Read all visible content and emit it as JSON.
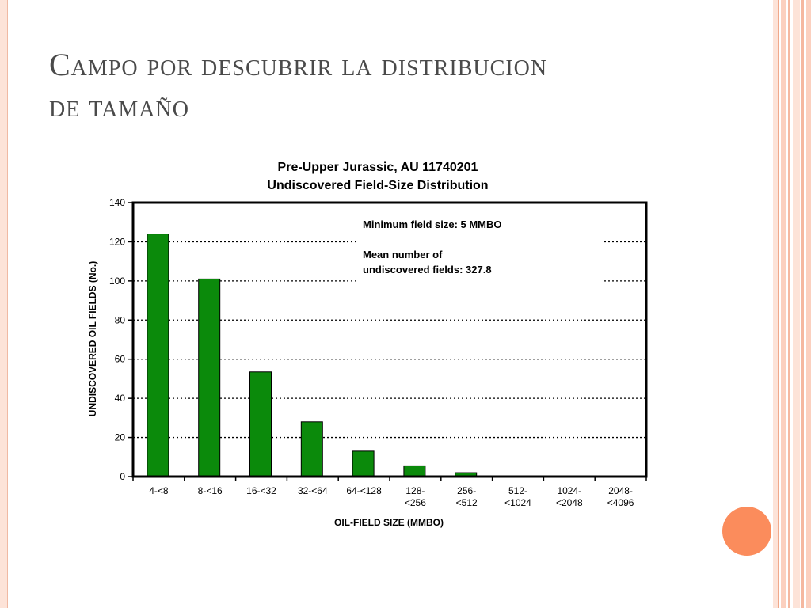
{
  "slide": {
    "title_line1": "Campo por descubrir la distribucion",
    "title_line2": "de tamaño"
  },
  "colors": {
    "bar": "#0b8a0b",
    "accent": "#fb8c5c",
    "border_light": "#fde3d8",
    "border_mid": "#f5b8a0"
  },
  "chart_data": {
    "type": "bar",
    "title": "Pre-Upper Jurassic, AU 11740201",
    "subtitle": "Undiscovered Field-Size Distribution",
    "xlabel": "OIL-FIELD SIZE (MMBO)",
    "ylabel": "UNDISCOVERED OIL FIELDS (No.)",
    "ylim": [
      0,
      140
    ],
    "yticks": [
      0,
      20,
      40,
      60,
      80,
      100,
      120,
      140
    ],
    "grid": true,
    "categories": [
      [
        "4-<8"
      ],
      [
        "8-<16"
      ],
      [
        "16-<32"
      ],
      [
        "32-<64"
      ],
      [
        "64-<128"
      ],
      [
        "128-",
        "<256"
      ],
      [
        "256-",
        "<512"
      ],
      [
        "512-",
        "<1024"
      ],
      [
        "1024-",
        "<2048"
      ],
      [
        "2048-",
        "<4096"
      ]
    ],
    "values": [
      124,
      101,
      53.5,
      28,
      13,
      5.5,
      2,
      0,
      0,
      0
    ],
    "annotations": [
      [
        "Minimum field size: 5 MMBO"
      ],
      [
        "Mean number of",
        "undiscovered fields: 327.8"
      ]
    ]
  }
}
